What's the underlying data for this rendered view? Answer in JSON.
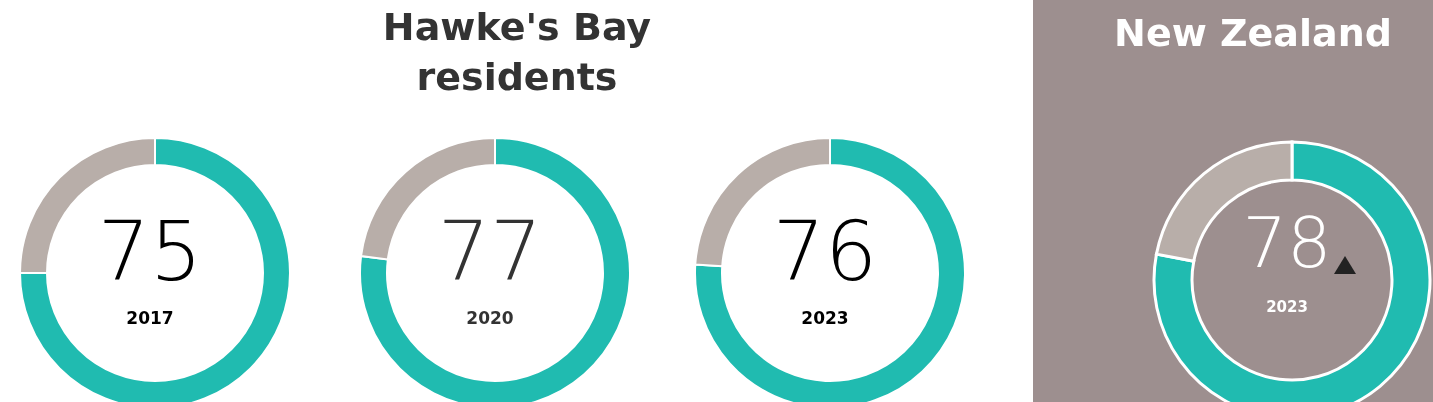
{
  "chart_data": [
    {
      "type": "donut",
      "categories": [
        null,
        null
      ],
      "values": [
        75,
        25
      ],
      "colors": [
        "#20bbb0",
        "#b8aea9"
      ],
      "value_labels": [
        "75",
        null
      ],
      "annotations": [
        "2017"
      ]
    },
    {
      "type": "donut",
      "title": "Hawke's Bay residents",
      "categories": [
        null,
        null
      ],
      "values": [
        77,
        23
      ],
      "colors": [
        "#20bbb0",
        "#b8aea9"
      ],
      "value_labels": [
        "77",
        null
      ],
      "annotations": [
        "2020"
      ]
    },
    {
      "type": "donut",
      "categories": [
        null,
        null
      ],
      "values": [
        76,
        24
      ],
      "colors": [
        "#20bbb0",
        "#b8aea9"
      ],
      "value_labels": [
        "76",
        null
      ],
      "annotations": [
        "2023"
      ]
    },
    {
      "type": "donut",
      "title": "New Zealand",
      "categories": [
        null,
        null
      ],
      "values": [
        78,
        22
      ],
      "colors": [
        "#20bbb0",
        "#b8aea9"
      ],
      "value_labels": [
        "78",
        null
      ],
      "annotations": [
        "2023"
      ]
    }
  ]
}
